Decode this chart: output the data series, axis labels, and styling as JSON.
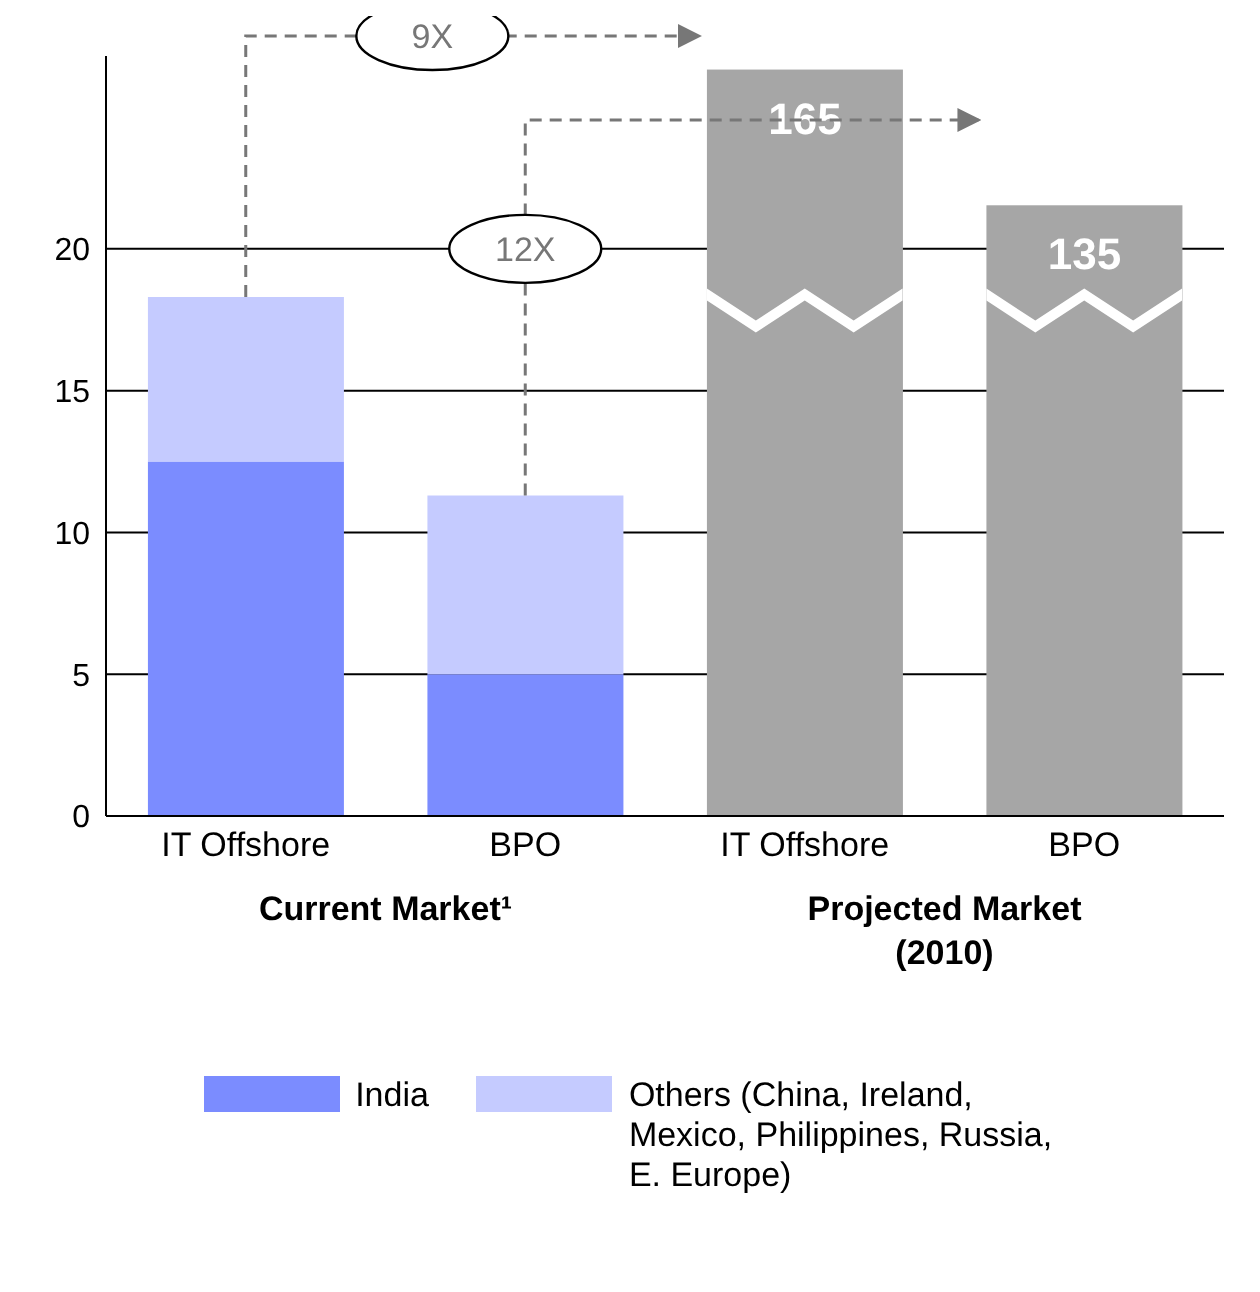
{
  "chart_data": {
    "type": "bar",
    "stacked": true,
    "categories": [
      "IT Offshore",
      "BPO",
      "IT Offshore",
      "BPO"
    ],
    "series": [
      {
        "name": "India",
        "color": "#7b8cff",
        "values": [
          12.5,
          5,
          null,
          null
        ]
      },
      {
        "name": "Others (China, Ireland, Mexico, Philippines, Russia, E. Europe)",
        "color": "#c5cbff",
        "values": [
          5.8,
          6.3,
          null,
          null
        ]
      },
      {
        "color": "#a6a6a6",
        "axis": "y2",
        "values": [
          null,
          null,
          165,
          135
        ],
        "value_labels": [
          null,
          null,
          "165",
          "135"
        ]
      }
    ],
    "ylim": [
      0,
      26.8
    ],
    "yticks": [
      0,
      5,
      10,
      15,
      20
    ],
    "y2lim": [
      0,
      168
    ],
    "grid": "y",
    "legend": "bottom",
    "annotations": [
      "9X",
      "12X",
      "Current Market¹",
      "Projected Market (2010)"
    ]
  }
}
